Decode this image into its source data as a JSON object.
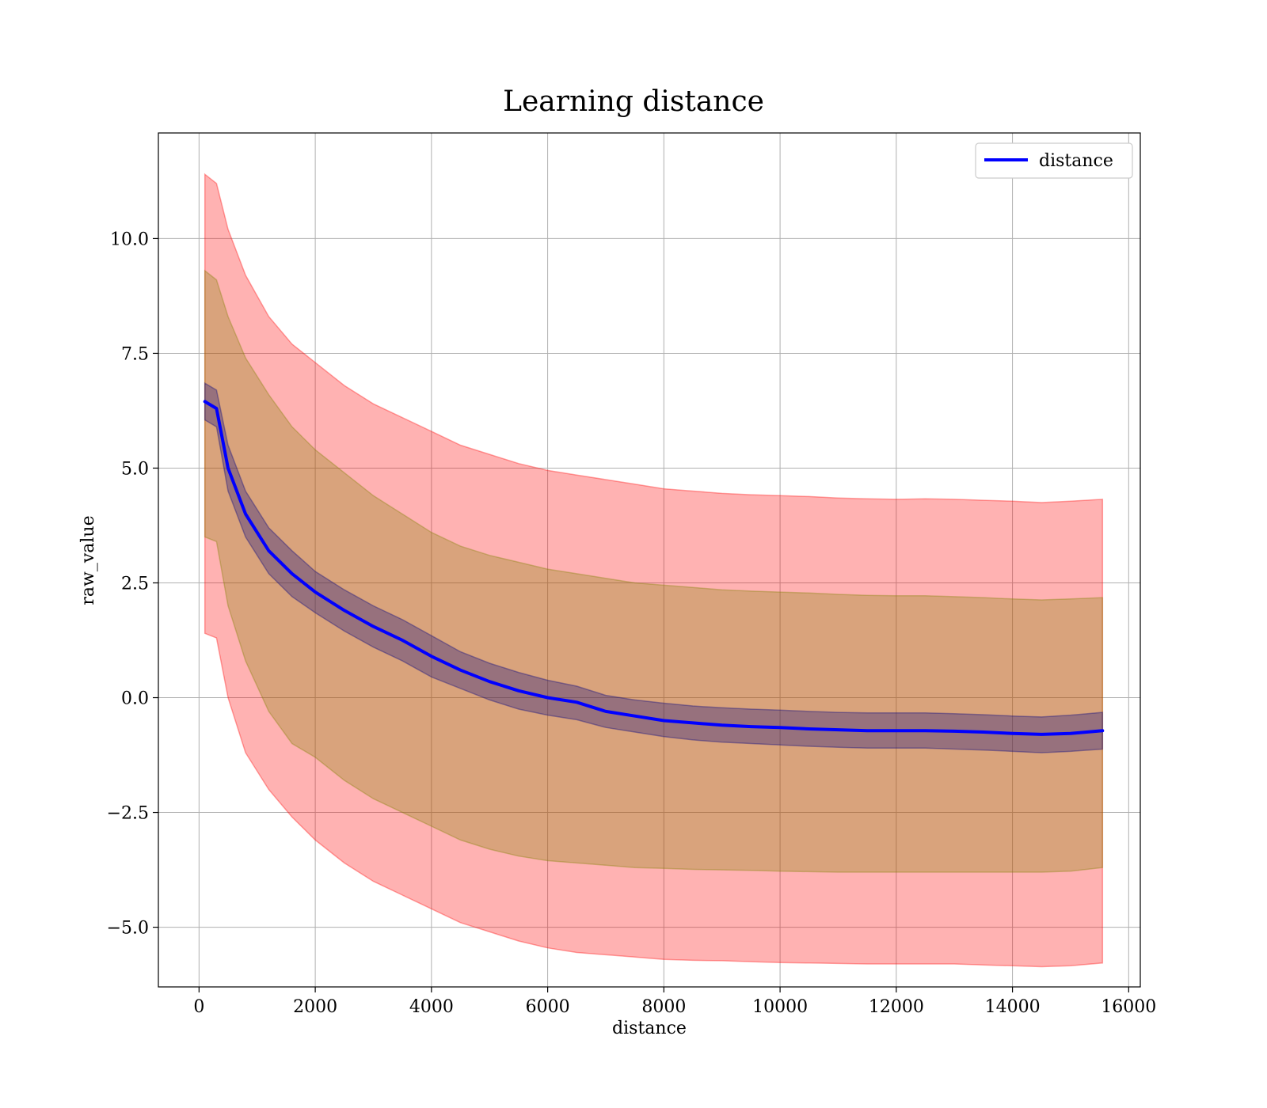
{
  "chart_data": {
    "type": "line",
    "title": "Learning distance",
    "xlabel": "distance",
    "ylabel": "raw_value",
    "xlim": [
      -700,
      16200
    ],
    "ylim": [
      -6.3,
      12.3
    ],
    "x_ticks": [
      0,
      2000,
      4000,
      6000,
      8000,
      10000,
      12000,
      14000,
      16000
    ],
    "y_ticks": [
      -5.0,
      -2.5,
      0.0,
      2.5,
      5.0,
      7.5,
      10.0
    ],
    "x_tick_labels": [
      "0",
      "2000",
      "4000",
      "6000",
      "8000",
      "10000",
      "12000",
      "14000",
      "16000"
    ],
    "y_tick_labels": [
      "−5.0",
      "−2.5",
      "0.0",
      "2.5",
      "5.0",
      "7.5",
      "10.0"
    ],
    "grid": true,
    "legend_position": "top-right",
    "series": [
      {
        "name": "distance",
        "color": "#0000ff",
        "x": [
          100,
          300,
          500,
          800,
          1200,
          1600,
          2000,
          2500,
          3000,
          3500,
          4000,
          4500,
          5000,
          5500,
          6000,
          6500,
          7000,
          7500,
          8000,
          8500,
          9000,
          9500,
          10000,
          10500,
          11000,
          11500,
          12000,
          12500,
          13000,
          13500,
          14000,
          14500,
          15000,
          15550
        ],
        "values": [
          6.45,
          6.3,
          5.0,
          4.0,
          3.2,
          2.7,
          2.3,
          1.9,
          1.55,
          1.25,
          0.9,
          0.6,
          0.35,
          0.15,
          0.0,
          -0.1,
          -0.3,
          -0.4,
          -0.5,
          -0.55,
          -0.6,
          -0.63,
          -0.65,
          -0.68,
          -0.7,
          -0.72,
          -0.72,
          -0.72,
          -0.73,
          -0.75,
          -0.78,
          -0.8,
          -0.78,
          -0.72
        ]
      }
    ],
    "bands": [
      {
        "color": "#ff0000",
        "opacity": 0.3,
        "x": [
          100,
          300,
          500,
          800,
          1200,
          1600,
          2000,
          2500,
          3000,
          3500,
          4000,
          4500,
          5000,
          5500,
          6000,
          6500,
          7000,
          7500,
          8000,
          8500,
          9000,
          9500,
          10000,
          10500,
          11000,
          11500,
          12000,
          12500,
          13000,
          13500,
          14000,
          14500,
          15000,
          15550
        ],
        "upper": [
          11.4,
          11.2,
          10.2,
          9.2,
          8.3,
          7.7,
          7.3,
          6.8,
          6.4,
          6.1,
          5.8,
          5.5,
          5.3,
          5.1,
          4.95,
          4.85,
          4.75,
          4.65,
          4.55,
          4.5,
          4.45,
          4.42,
          4.4,
          4.38,
          4.35,
          4.33,
          4.32,
          4.33,
          4.32,
          4.3,
          4.28,
          4.25,
          4.28,
          4.32
        ],
        "lower": [
          1.4,
          1.3,
          0.0,
          -1.2,
          -2.0,
          -2.6,
          -3.1,
          -3.6,
          -4.0,
          -4.3,
          -4.6,
          -4.9,
          -5.1,
          -5.3,
          -5.45,
          -5.55,
          -5.6,
          -5.65,
          -5.7,
          -5.72,
          -5.73,
          -5.75,
          -5.77,
          -5.78,
          -5.79,
          -5.8,
          -5.8,
          -5.8,
          -5.8,
          -5.82,
          -5.84,
          -5.86,
          -5.84,
          -5.78
        ]
      },
      {
        "color": "#808000",
        "opacity": 0.3,
        "x": [
          100,
          300,
          500,
          800,
          1200,
          1600,
          2000,
          2500,
          3000,
          3500,
          4000,
          4500,
          5000,
          5500,
          6000,
          6500,
          7000,
          7500,
          8000,
          8500,
          9000,
          9500,
          10000,
          10500,
          11000,
          11500,
          12000,
          12500,
          13000,
          13500,
          14000,
          14500,
          15000,
          15550
        ],
        "upper": [
          9.3,
          9.1,
          8.3,
          7.4,
          6.6,
          5.9,
          5.4,
          4.9,
          4.4,
          4.0,
          3.6,
          3.3,
          3.1,
          2.95,
          2.8,
          2.7,
          2.6,
          2.5,
          2.45,
          2.4,
          2.35,
          2.32,
          2.3,
          2.28,
          2.25,
          2.23,
          2.22,
          2.22,
          2.2,
          2.18,
          2.15,
          2.13,
          2.15,
          2.18
        ],
        "lower": [
          3.5,
          3.4,
          2.0,
          0.8,
          -0.3,
          -1.0,
          -1.3,
          -1.8,
          -2.2,
          -2.5,
          -2.8,
          -3.1,
          -3.3,
          -3.45,
          -3.55,
          -3.6,
          -3.65,
          -3.7,
          -3.72,
          -3.74,
          -3.75,
          -3.76,
          -3.78,
          -3.79,
          -3.8,
          -3.8,
          -3.8,
          -3.8,
          -3.8,
          -3.8,
          -3.8,
          -3.8,
          -3.78,
          -3.7
        ]
      },
      {
        "color": "#000080",
        "opacity": 0.3,
        "x": [
          100,
          300,
          500,
          800,
          1200,
          1600,
          2000,
          2500,
          3000,
          3500,
          4000,
          4500,
          5000,
          5500,
          6000,
          6500,
          7000,
          7500,
          8000,
          8500,
          9000,
          9500,
          10000,
          10500,
          11000,
          11500,
          12000,
          12500,
          13000,
          13500,
          14000,
          14500,
          15000,
          15550
        ],
        "upper": [
          6.85,
          6.7,
          5.5,
          4.5,
          3.7,
          3.2,
          2.75,
          2.35,
          2.0,
          1.7,
          1.35,
          1.0,
          0.75,
          0.55,
          0.38,
          0.25,
          0.05,
          -0.05,
          -0.12,
          -0.18,
          -0.22,
          -0.25,
          -0.27,
          -0.3,
          -0.32,
          -0.33,
          -0.33,
          -0.33,
          -0.35,
          -0.37,
          -0.4,
          -0.42,
          -0.38,
          -0.32
        ],
        "lower": [
          6.05,
          5.9,
          4.5,
          3.5,
          2.7,
          2.2,
          1.85,
          1.45,
          1.1,
          0.8,
          0.45,
          0.2,
          -0.05,
          -0.25,
          -0.38,
          -0.48,
          -0.65,
          -0.75,
          -0.85,
          -0.92,
          -0.97,
          -1.0,
          -1.03,
          -1.06,
          -1.08,
          -1.1,
          -1.1,
          -1.1,
          -1.12,
          -1.14,
          -1.17,
          -1.2,
          -1.17,
          -1.12
        ]
      }
    ]
  }
}
